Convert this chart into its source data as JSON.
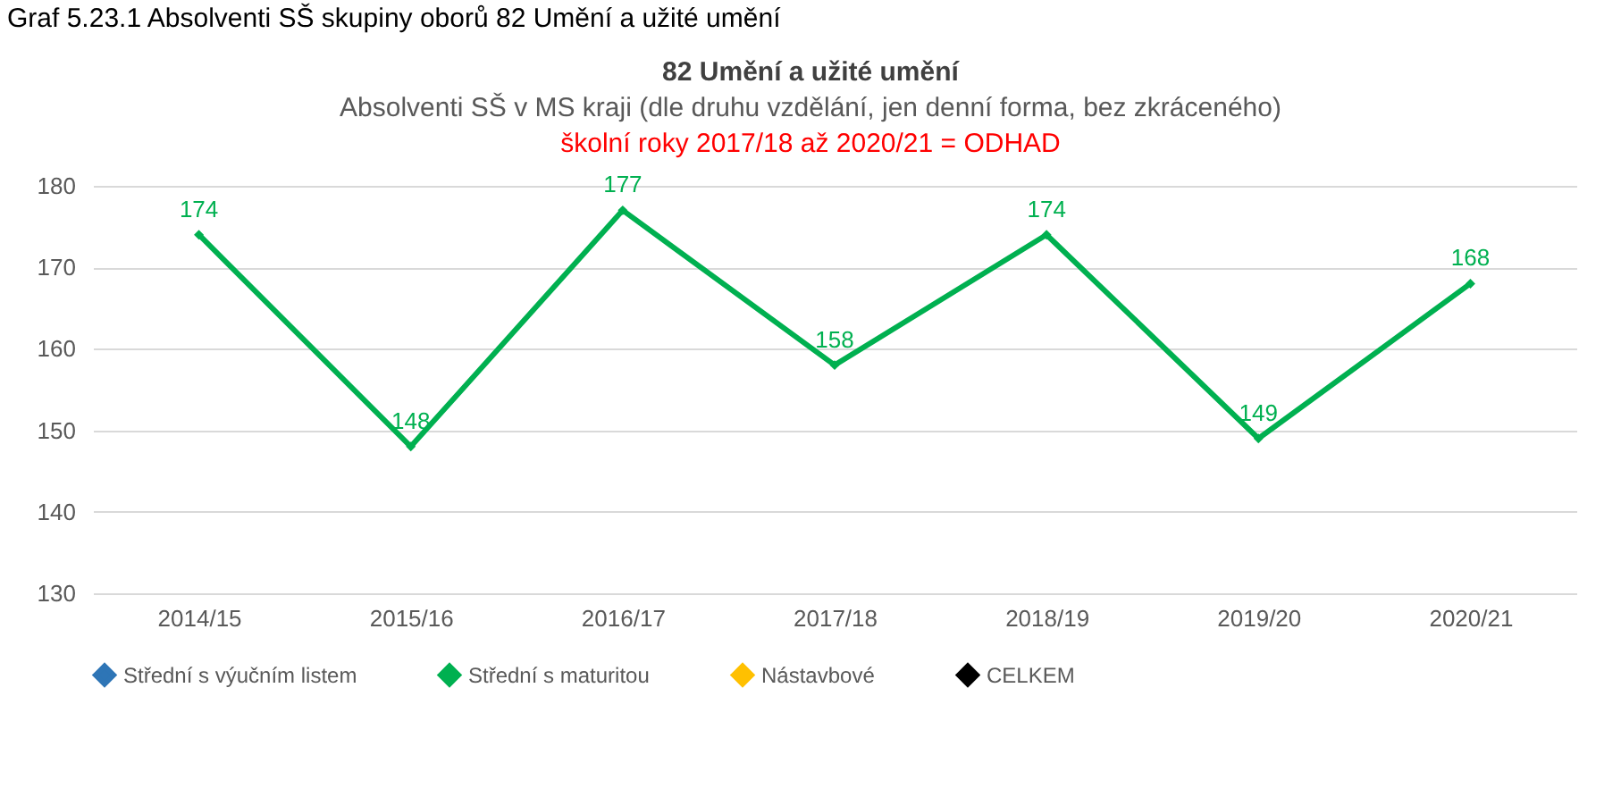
{
  "chart_data": {
    "type": "line",
    "title": "82 Umění a užité umění",
    "subtitle": "Absolventi SŠ v MS kraji  (dle druhu vzdělání, jen denní forma, bez zkráceného)",
    "annotations": [
      "Graf 5.23.1 Absolventi SŠ skupiny oborů 82 Umění a užité umění",
      "školní roky 2017/18 až 2020/21 = ODHAD"
    ],
    "categories": [
      "2014/15",
      "2015/16",
      "2016/17",
      "2017/18",
      "2018/19",
      "2019/20",
      "2020/21"
    ],
    "series": [
      {
        "name": "Střední s výučním listem",
        "color": "#2e75b6",
        "values": [
          null,
          null,
          null,
          null,
          null,
          null,
          null
        ]
      },
      {
        "name": "Střední s maturitou",
        "color": "#00b050",
        "values": [
          174,
          148,
          177,
          158,
          174,
          149,
          168
        ]
      },
      {
        "name": "Nástavbové",
        "color": "#ffc000",
        "values": [
          null,
          null,
          null,
          null,
          null,
          null,
          null
        ]
      },
      {
        "name": "CELKEM",
        "color": "#000000",
        "values": [
          null,
          null,
          null,
          null,
          null,
          null,
          null
        ]
      }
    ],
    "ylim": [
      130,
      180
    ],
    "yticks": [
      130,
      140,
      150,
      160,
      170,
      180
    ],
    "grid": "y",
    "legend": "bottom",
    "marker": "diamond",
    "data_labels": true
  }
}
